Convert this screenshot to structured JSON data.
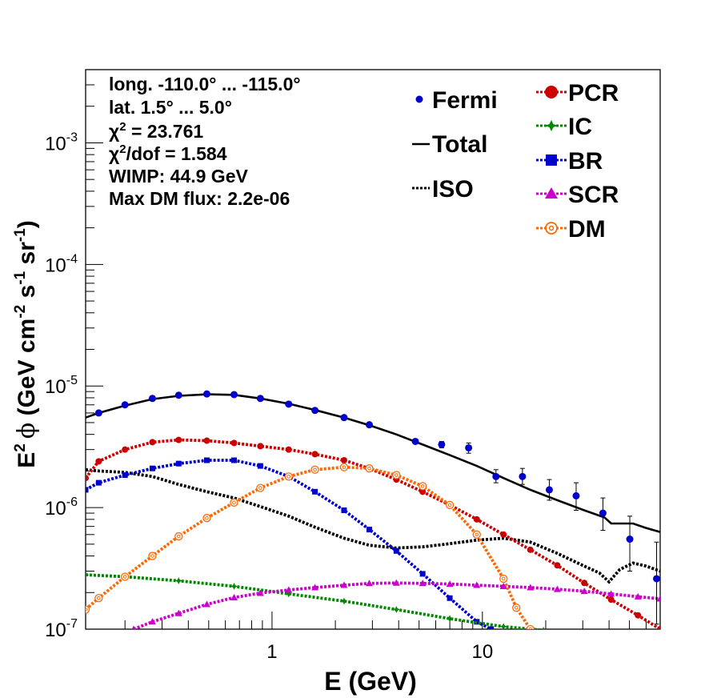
{
  "chart_data": {
    "type": "line",
    "xlabel": "E (GeV)",
    "ylabel": {
      "prefix": "E",
      "prefix_sup": "2",
      "phi": "ϕ",
      "open": " (GeV cm",
      "sup1": "-2",
      "mid1": " s",
      "sup2": "-1",
      "mid2": " sr",
      "sup3": "-1",
      "close": ")"
    },
    "x_scale": "log",
    "y_scale": "log",
    "xlim": [
      0.13,
      70
    ],
    "ylim": [
      1e-07,
      0.004
    ],
    "x_tick_labels": [
      {
        "value": 1,
        "label": "1"
      },
      {
        "value": 10,
        "label": "10"
      }
    ],
    "y_tick_labels": [
      {
        "value": 1e-07,
        "mant": "10",
        "exp": "-7"
      },
      {
        "value": 1e-06,
        "mant": "10",
        "exp": "-6"
      },
      {
        "value": 1e-05,
        "mant": "10",
        "exp": "-5"
      },
      {
        "value": 0.0001,
        "mant": "10",
        "exp": "-4"
      },
      {
        "value": 0.001,
        "mant": "10",
        "exp": "-3"
      }
    ],
    "annotations": [
      {
        "text": "long. -110.0° ... -115.0°"
      },
      {
        "text": "lat. 1.5° ... 5.0°"
      },
      {
        "chi": "χ",
        "sup": "2",
        "text": " = 23.761"
      },
      {
        "chi": "χ",
        "sup": "2",
        "text": "/dof = 1.584"
      },
      {
        "text": "WIMP: 44.9 GeV"
      },
      {
        "text": "Max DM flux: 2.2e-06"
      }
    ],
    "legend_placement": "top-right",
    "legend": [
      {
        "key": "fermi",
        "label": "Fermi"
      },
      {
        "key": "total",
        "label": "Total"
      },
      {
        "key": "iso",
        "label": "ISO"
      },
      {
        "key": "pcr",
        "label": "PCR"
      },
      {
        "key": "ic",
        "label": "IC"
      },
      {
        "key": "br",
        "label": "BR"
      },
      {
        "key": "scr",
        "label": "SCR"
      },
      {
        "key": "dm",
        "label": "DM"
      }
    ],
    "points": {
      "name": "Fermi",
      "color": "#0000cc",
      "x": [
        0.15,
        0.2,
        0.27,
        0.36,
        0.49,
        0.66,
        0.88,
        1.2,
        1.6,
        2.2,
        2.9,
        4.8,
        6.4,
        8.6,
        11.6,
        15.5,
        20.8,
        27.9,
        37.4,
        50.2,
        67.3
      ],
      "y": [
        6e-06,
        7e-06,
        7.9e-06,
        8.4e-06,
        8.6e-06,
        8.5e-06,
        7.9e-06,
        7.1e-06,
        6.3e-06,
        5.5e-06,
        4.8e-06,
        3.5e-06,
        3.3e-06,
        3.1e-06,
        1.8e-06,
        1.8e-06,
        1.4e-06,
        1.25e-06,
        9e-07,
        5.5e-07,
        2.6e-07
      ],
      "yerr_low": [
        0,
        0,
        0,
        0,
        0,
        0,
        0,
        0,
        0,
        0,
        0,
        0,
        2e-07,
        3e-07,
        2e-07,
        2.5e-07,
        2.5e-07,
        3e-07,
        2.5e-07,
        2.5e-07,
        1.5e-07
      ],
      "yerr_high": [
        0,
        0,
        0,
        0,
        0,
        0,
        0,
        0,
        0,
        0,
        0,
        0,
        2e-07,
        3e-07,
        2.5e-07,
        3e-07,
        3e-07,
        3.5e-07,
        3e-07,
        3e-07,
        2.6e-07
      ]
    },
    "series": [
      {
        "key": "total",
        "name": "Total",
        "color": "#000000",
        "line": "solid",
        "marker": "none",
        "x": [
          0.13,
          0.15,
          0.2,
          0.27,
          0.36,
          0.49,
          0.66,
          0.88,
          1.2,
          1.6,
          2.2,
          2.9,
          3.9,
          5.2,
          7.0,
          9.4,
          12.6,
          16.9,
          22.7,
          30.5,
          38.0,
          41.0,
          48.0,
          52.0,
          60.0,
          70.0
        ],
        "y": [
          5.5e-06,
          6e-06,
          6.9e-06,
          7.8e-06,
          8.3e-06,
          8.55e-06,
          8.45e-06,
          7.9e-06,
          7.15e-06,
          6.35e-06,
          5.5e-06,
          4.75e-06,
          4e-06,
          3.3e-06,
          2.7e-06,
          2.2e-06,
          1.75e-06,
          1.4e-06,
          1.15e-06,
          9.5e-07,
          8.3e-07,
          7.4e-07,
          7.4e-07,
          7.4e-07,
          6.8e-07,
          6.3e-07
        ]
      },
      {
        "key": "iso",
        "name": "ISO",
        "color": "#000000",
        "line": "dotted",
        "marker": "none",
        "x": [
          0.13,
          0.15,
          0.2,
          0.27,
          0.36,
          0.49,
          0.66,
          0.88,
          1.2,
          1.6,
          2.2,
          2.9,
          3.9,
          5.2,
          7.0,
          9.4,
          12.6,
          16.9,
          22.7,
          30.5,
          36.0,
          40.0,
          45.0,
          52.0,
          60.0,
          70.0
        ],
        "y": [
          2.05e-06,
          2e-06,
          1.95e-06,
          1.8e-06,
          1.55e-06,
          1.35e-06,
          1.2e-06,
          1.02e-06,
          8.5e-07,
          6.9e-07,
          5.6e-07,
          4.9e-07,
          4.65e-07,
          4.75e-07,
          5.05e-07,
          5.4e-07,
          5.6e-07,
          5.2e-07,
          4.2e-07,
          3.3e-07,
          2.9e-07,
          2.45e-07,
          3.1e-07,
          3.5e-07,
          3.3e-07,
          3e-07
        ]
      },
      {
        "key": "pcr",
        "name": "PCR",
        "color": "#cc0000",
        "line": "dotted",
        "marker": "circle",
        "x": [
          0.13,
          0.15,
          0.2,
          0.27,
          0.36,
          0.49,
          0.66,
          0.88,
          1.2,
          1.6,
          2.2,
          2.9,
          3.9,
          5.2,
          7.0,
          9.4,
          12.6,
          16.9,
          22.7,
          30.5,
          40.9,
          54.9,
          70.0
        ],
        "y": [
          1.75e-06,
          2.4e-06,
          3e-06,
          3.45e-06,
          3.6e-06,
          3.55e-06,
          3.4e-06,
          3.2e-06,
          3e-06,
          2.75e-06,
          2.45e-06,
          2.1e-06,
          1.7e-06,
          1.35e-06,
          1.05e-06,
          8e-07,
          6e-07,
          4.5e-07,
          3.35e-07,
          2.4e-07,
          1.75e-07,
          1.3e-07,
          1e-07
        ]
      },
      {
        "key": "br",
        "name": "BR",
        "color": "#0000cc",
        "line": "dotted",
        "marker": "square",
        "x": [
          0.13,
          0.15,
          0.2,
          0.27,
          0.36,
          0.49,
          0.66,
          0.88,
          1.2,
          1.6,
          2.2,
          2.9,
          3.9,
          5.2,
          7.0,
          9.4,
          11.0
        ],
        "y": [
          1.4e-06,
          1.6e-06,
          1.85e-06,
          2.1e-06,
          2.3e-06,
          2.45e-06,
          2.45e-06,
          2.2e-06,
          1.8e-06,
          1.35e-06,
          9.5e-07,
          6.6e-07,
          4.4e-07,
          2.85e-07,
          1.8e-07,
          1.15e-07,
          1e-07
        ]
      },
      {
        "key": "ic",
        "name": "IC",
        "color": "#008800",
        "line": "dotted",
        "marker": "star",
        "x": [
          0.13,
          0.2,
          0.36,
          0.66,
          1.2,
          2.2,
          3.9,
          7.0,
          12.6,
          19.5
        ],
        "y": [
          2.8e-07,
          2.7e-07,
          2.5e-07,
          2.25e-07,
          1.95e-07,
          1.7e-07,
          1.45e-07,
          1.22e-07,
          1.05e-07,
          9.8e-08
        ]
      },
      {
        "key": "scr",
        "name": "SCR",
        "color": "#cc00cc",
        "line": "dotted",
        "marker": "triangle",
        "x": [
          0.22,
          0.27,
          0.36,
          0.49,
          0.66,
          0.88,
          1.2,
          1.6,
          2.2,
          2.9,
          3.9,
          5.2,
          7.0,
          9.4,
          12.6,
          16.9,
          22.7,
          30.5,
          40.9,
          54.9,
          70.0
        ],
        "y": [
          1e-07,
          1.15e-07,
          1.35e-07,
          1.6e-07,
          1.82e-07,
          1.98e-07,
          2.1e-07,
          2.2e-07,
          2.3e-07,
          2.38e-07,
          2.4e-07,
          2.38e-07,
          2.35e-07,
          2.3e-07,
          2.25e-07,
          2.2e-07,
          2.13e-07,
          2.05e-07,
          1.95e-07,
          1.85e-07,
          1.78e-07
        ]
      },
      {
        "key": "dm",
        "name": "DM",
        "color": "#ff6600",
        "line": "dotted",
        "marker": "open-circle",
        "x": [
          0.13,
          0.15,
          0.2,
          0.27,
          0.36,
          0.49,
          0.66,
          0.88,
          1.2,
          1.6,
          2.2,
          2.9,
          3.9,
          5.2,
          7.0,
          9.4,
          12.6,
          14.5,
          16.9,
          18.5
        ],
        "y": [
          1.45e-07,
          1.8e-07,
          2.7e-07,
          4e-07,
          5.8e-07,
          8.2e-07,
          1.1e-06,
          1.45e-06,
          1.8e-06,
          2.05e-06,
          2.15e-06,
          2.1e-06,
          1.85e-06,
          1.5e-06,
          1.05e-06,
          6e-07,
          2.6e-07,
          1.5e-07,
          1e-07,
          7e-08
        ]
      }
    ]
  }
}
